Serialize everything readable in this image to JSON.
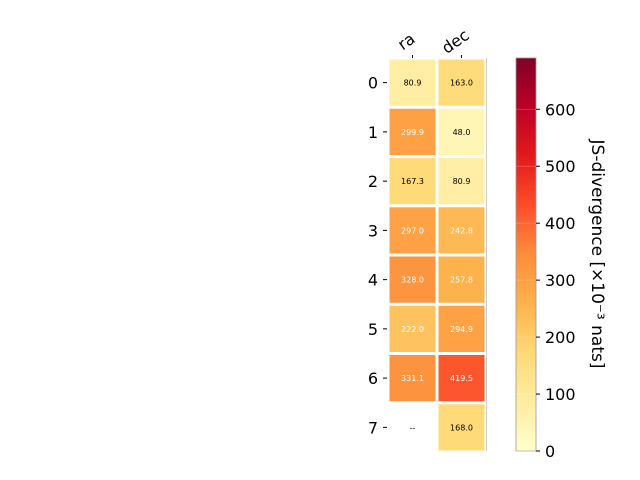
{
  "chart_data": {
    "type": "heatmap",
    "columns": [
      "ra",
      "dec"
    ],
    "rows": [
      "0",
      "1",
      "2",
      "3",
      "4",
      "5",
      "6",
      "7"
    ],
    "values": [
      [
        80.9,
        163.0
      ],
      [
        299.9,
        48.0
      ],
      [
        167.3,
        80.9
      ],
      [
        297.0,
        242.8
      ],
      [
        328.0,
        257.8
      ],
      [
        222.0,
        294.9
      ],
      [
        331.1,
        419.5
      ],
      [
        null,
        168.0
      ]
    ],
    "cell_labels": [
      [
        "80.9",
        "163.0"
      ],
      [
        "299.9",
        "48.0"
      ],
      [
        "167.3",
        "80.9"
      ],
      [
        "297.0",
        "242.8"
      ],
      [
        "328.0",
        "257.8"
      ],
      [
        "222.0",
        "294.9"
      ],
      [
        "331.1",
        "419.5"
      ],
      [
        "--",
        "168.0"
      ]
    ],
    "colorbar": {
      "label": "JS-divergence [×10⁻³ nats]",
      "min": 0,
      "max": 690,
      "ticks": [
        0,
        100,
        200,
        300,
        400,
        500,
        600
      ],
      "colormap": "YlOrRd"
    }
  }
}
